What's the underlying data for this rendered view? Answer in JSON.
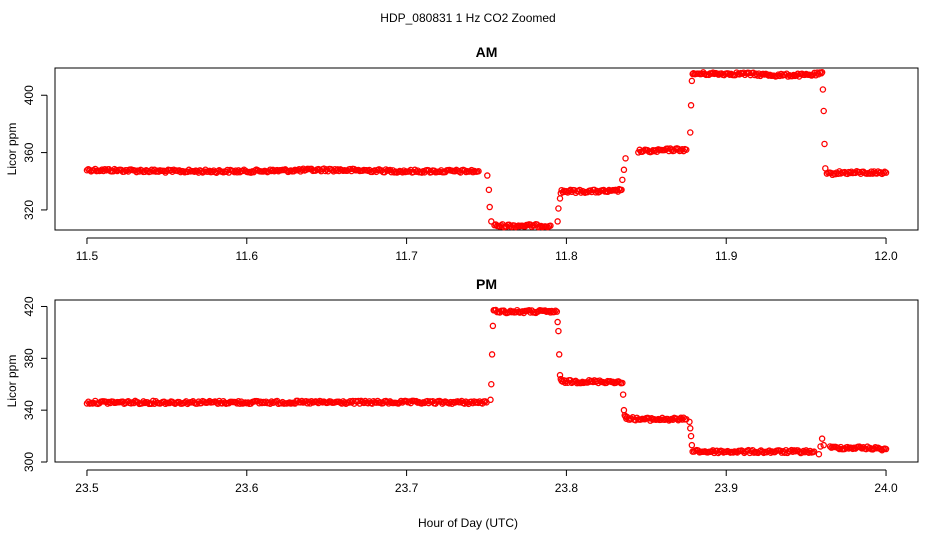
{
  "title": "HDP_080831  1 Hz CO2 Zoomed",
  "xlabel": "Hour of Day (UTC)",
  "point_color": "#ff0000",
  "chart_data": [
    {
      "type": "scatter",
      "title": "AM",
      "ylabel": "Licor ppm",
      "xlim": [
        11.48,
        12.02
      ],
      "ylim": [
        306,
        419
      ],
      "xticks": [
        11.5,
        11.6,
        11.7,
        11.8,
        11.9,
        12.0
      ],
      "xtick_labels": [
        "11.5",
        "11.6",
        "11.7",
        "11.8",
        "11.9",
        "12.0"
      ],
      "yticks": [
        320,
        360,
        400
      ],
      "ytick_labels": [
        "320",
        "360",
        "400"
      ],
      "grid": false,
      "legend": "none",
      "series": [
        {
          "x": [
            11.5,
            11.55,
            11.6,
            11.65,
            11.7,
            11.745,
            11.7505,
            11.7515,
            11.752,
            11.753,
            11.755,
            11.76,
            11.77,
            11.78,
            11.79,
            11.7945,
            11.795,
            11.796,
            11.7965,
            11.797,
            11.8,
            11.81,
            11.82,
            11.83,
            11.8345,
            11.835,
            11.836,
            11.837,
            11.845,
            11.855,
            11.865,
            11.875,
            11.8775,
            11.878,
            11.8785,
            11.879,
            11.8795,
            11.89,
            11.91,
            11.93,
            11.95,
            11.9595,
            11.96,
            11.9605,
            11.961,
            11.9615,
            11.962,
            11.963,
            11.97,
            11.98,
            11.99,
            12.0
          ],
          "y": [
            348,
            347,
            347,
            348,
            347,
            347,
            344,
            334,
            322,
            312,
            309,
            309,
            309,
            309,
            309,
            312,
            321,
            328,
            332,
            333,
            333,
            333,
            333,
            333,
            334,
            341,
            348,
            356,
            361,
            361,
            362,
            362,
            374,
            393,
            410,
            414,
            415,
            415,
            415,
            414,
            414,
            415,
            416,
            404,
            389,
            366,
            349,
            345,
            346,
            346,
            346,
            346
          ]
        }
      ]
    },
    {
      "type": "scatter",
      "title": "PM",
      "ylabel": "Licor ppm",
      "xlim": [
        23.48,
        24.02
      ],
      "ylim": [
        300,
        425
      ],
      "xticks": [
        23.5,
        23.6,
        23.7,
        23.8,
        23.9,
        24.0
      ],
      "xtick_labels": [
        "23.5",
        "23.6",
        "23.7",
        "23.8",
        "23.9",
        "24.0"
      ],
      "yticks": [
        300,
        340,
        380,
        420
      ],
      "ytick_labels": [
        "300",
        "340",
        "380",
        "420"
      ],
      "grid": false,
      "legend": "none",
      "series": [
        {
          "x": [
            23.5,
            23.55,
            23.6,
            23.65,
            23.7,
            23.75,
            23.7525,
            23.753,
            23.7535,
            23.754,
            23.7545,
            23.755,
            23.76,
            23.77,
            23.78,
            23.79,
            23.794,
            23.7945,
            23.795,
            23.7955,
            23.796,
            23.7965,
            23.797,
            23.8,
            23.81,
            23.82,
            23.83,
            23.835,
            23.8355,
            23.836,
            23.8365,
            23.837,
            23.838,
            23.845,
            23.855,
            23.865,
            23.875,
            23.877,
            23.8775,
            23.878,
            23.8785,
            23.879,
            23.885,
            23.9,
            23.92,
            23.94,
            23.955,
            23.958,
            23.959,
            23.96,
            23.961,
            23.965,
            23.975,
            23.985,
            24.0
          ],
          "y": [
            346,
            346,
            346,
            346,
            346,
            346,
            348,
            360,
            383,
            405,
            416,
            417,
            416,
            416,
            416,
            416,
            416,
            408,
            401,
            383,
            367,
            363,
            362,
            362,
            362,
            362,
            362,
            361,
            352,
            340,
            336,
            334,
            334,
            333,
            333,
            333,
            333,
            331,
            326,
            320,
            313,
            309,
            308,
            308,
            308,
            308,
            308,
            306,
            312,
            318,
            313,
            311,
            311,
            311,
            310
          ]
        }
      ]
    }
  ]
}
